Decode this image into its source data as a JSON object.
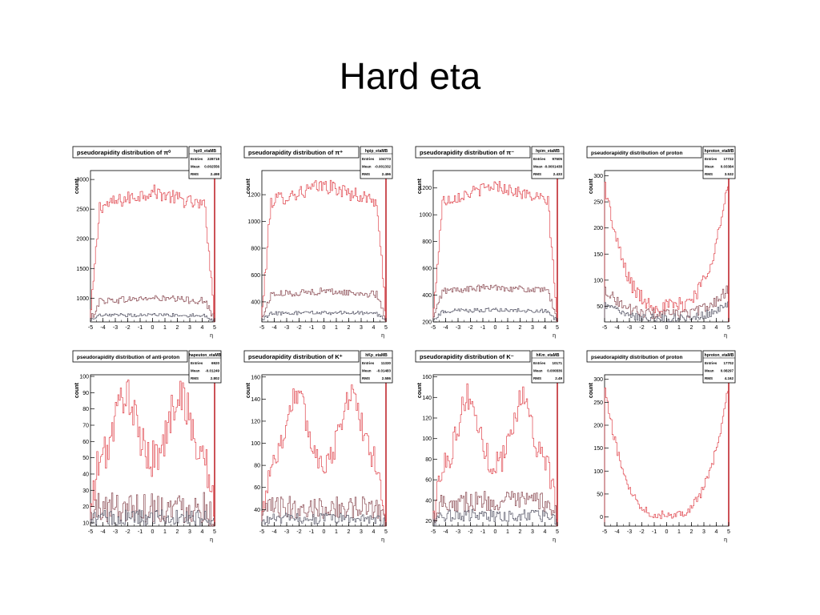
{
  "slide": {
    "title": "Hard eta"
  },
  "colors": {
    "primary": "#e0444c",
    "secondary": "#8a4a52",
    "tertiary": "#555566",
    "frame": "#000000"
  },
  "chart_data": [
    {
      "type": "step-histogram",
      "title": "pseudorapidity distribution of π⁰",
      "xlabel": "η",
      "ylabel": "count",
      "xlim": [
        -5,
        5
      ],
      "ylim": [
        600,
        3150
      ],
      "xticks": [
        -5,
        -4,
        -3,
        -2,
        -1,
        0,
        1,
        2,
        3,
        4,
        5
      ],
      "yticks": [
        1000,
        1500,
        2000,
        2500,
        3000
      ],
      "stats": {
        "name": "hpi0_etaMB",
        "rows": [
          [
            "Entries",
            "228718"
          ],
          [
            "Mean",
            "0.002556"
          ],
          [
            "RMS",
            "2.498"
          ]
        ]
      },
      "series": [
        {
          "role": "primary",
          "shape": "plateau",
          "peak": 2800,
          "base": 650,
          "edge": 0.85,
          "noise": 120
        },
        {
          "role": "secondary",
          "shape": "plateau",
          "peak": 1000,
          "base": 620,
          "edge": 0.85,
          "noise": 60
        },
        {
          "role": "tertiary",
          "shape": "plateau",
          "peak": 720,
          "base": 610,
          "edge": 0.85,
          "noise": 30
        }
      ]
    },
    {
      "type": "step-histogram",
      "title": "pseudorapidity distribution of π⁺",
      "xlabel": "η",
      "ylabel": "count",
      "xlim": [
        -5,
        5
      ],
      "ylim": [
        250,
        1380
      ],
      "xticks": [
        -5,
        -4,
        -3,
        -2,
        -1,
        0,
        1,
        2,
        3,
        4,
        5
      ],
      "yticks": [
        400,
        600,
        800,
        1000,
        1200
      ],
      "stats": {
        "name": "hpip_etaMB",
        "rows": [
          [
            "Entries",
            "104773"
          ],
          [
            "Mean",
            "-0.001332"
          ],
          [
            "RMS",
            "2.496"
          ]
        ]
      },
      "series": [
        {
          "role": "primary",
          "shape": "plateau",
          "peak": 1270,
          "base": 290,
          "edge": 0.85,
          "noise": 55
        },
        {
          "role": "secondary",
          "shape": "plateau",
          "peak": 480,
          "base": 270,
          "edge": 0.85,
          "noise": 25
        },
        {
          "role": "tertiary",
          "shape": "plateau",
          "peak": 320,
          "base": 260,
          "edge": 0.85,
          "noise": 15
        }
      ]
    },
    {
      "type": "step-histogram",
      "title": "pseudorapidity distribution of π⁻",
      "xlabel": "η",
      "ylabel": "count",
      "xlim": [
        -5,
        5
      ],
      "ylim": [
        200,
        1330
      ],
      "xticks": [
        -5,
        -4,
        -3,
        -2,
        -1,
        0,
        1,
        2,
        3,
        4,
        5
      ],
      "yticks": [
        200,
        400,
        600,
        800,
        1000,
        1200
      ],
      "stats": {
        "name": "hpim_etaMB",
        "rows": [
          [
            "Entries",
            "97605"
          ],
          [
            "Mean",
            "-0.0001438"
          ],
          [
            "RMS",
            "2.433"
          ]
        ]
      },
      "series": [
        {
          "role": "primary",
          "shape": "plateau",
          "peak": 1220,
          "base": 230,
          "edge": 0.85,
          "noise": 45
        },
        {
          "role": "secondary",
          "shape": "plateau",
          "peak": 460,
          "base": 215,
          "edge": 0.85,
          "noise": 25
        },
        {
          "role": "tertiary",
          "shape": "plateau",
          "peak": 290,
          "base": 205,
          "edge": 0.85,
          "noise": 15
        }
      ]
    },
    {
      "type": "step-histogram",
      "title": "pseudorapidity distribution of proton",
      "xlabel": "η",
      "ylabel": "count",
      "xlim": [
        -5,
        5
      ],
      "ylim": [
        20,
        310
      ],
      "xticks": [
        -5,
        -4,
        -3,
        -2,
        -1,
        0,
        1,
        2,
        3,
        4,
        5
      ],
      "yticks": [
        50,
        100,
        150,
        200,
        250,
        300
      ],
      "stats": {
        "name": "hproton_etaMB",
        "rows": [
          [
            "Entries",
            "17722"
          ],
          [
            "Mean",
            "0.03384"
          ],
          [
            "RMS",
            "3.532"
          ]
        ]
      },
      "series": [
        {
          "role": "primary",
          "shape": "u",
          "peak": 290,
          "base": 50,
          "edge": 0,
          "noise": 15
        },
        {
          "role": "secondary",
          "shape": "u",
          "peak": 85,
          "base": 35,
          "edge": 0,
          "noise": 10
        },
        {
          "role": "tertiary",
          "shape": "u",
          "peak": 55,
          "base": 28,
          "edge": 0,
          "noise": 8
        }
      ]
    },
    {
      "type": "step-histogram",
      "title": "pseudorapidity distribution of anti-proton",
      "xlabel": "η",
      "ylabel": "count",
      "xlim": [
        -5,
        5
      ],
      "ylim": [
        8,
        101
      ],
      "xticks": [
        -5,
        -4,
        -3,
        -2,
        -1,
        0,
        1,
        2,
        3,
        4,
        5
      ],
      "yticks": [
        10,
        20,
        30,
        40,
        50,
        60,
        70,
        80,
        90,
        100
      ],
      "stats": {
        "name": "hapeuton_etaMB",
        "rows": [
          [
            "Entries",
            "6920"
          ],
          [
            "Mean",
            "-0.01249"
          ],
          [
            "RMS",
            "2.802"
          ]
        ]
      },
      "series": [
        {
          "role": "primary",
          "shape": "bimodal",
          "peak": 90,
          "base": 15,
          "edge": 0.9,
          "noise": 12
        },
        {
          "role": "secondary",
          "shape": "flat",
          "peak": 25,
          "base": 12,
          "edge": 0.9,
          "noise": 10
        },
        {
          "role": "tertiary",
          "shape": "flat",
          "peak": 15,
          "base": 10,
          "edge": 0.9,
          "noise": 5
        }
      ]
    },
    {
      "type": "step-histogram",
      "title": "pseudorapidity distribution of K⁺",
      "xlabel": "η",
      "ylabel": "count",
      "xlim": [
        -5,
        5
      ],
      "ylim": [
        25,
        162
      ],
      "xticks": [
        -5,
        -4,
        -3,
        -2,
        -1,
        0,
        1,
        2,
        3,
        4,
        5
      ],
      "yticks": [
        40,
        60,
        80,
        100,
        120,
        140,
        160
      ],
      "stats": {
        "name": "hKp_etaMB",
        "rows": [
          [
            "Entries",
            "11330"
          ],
          [
            "Mean",
            "-0.01483"
          ],
          [
            "RMS",
            "2.586"
          ]
        ]
      },
      "series": [
        {
          "role": "primary",
          "shape": "bimodal",
          "peak": 145,
          "base": 30,
          "edge": 0.85,
          "noise": 12
        },
        {
          "role": "secondary",
          "shape": "flat",
          "peak": 50,
          "base": 30,
          "edge": 0.85,
          "noise": 10
        },
        {
          "role": "tertiary",
          "shape": "flat",
          "peak": 35,
          "base": 27,
          "edge": 0.85,
          "noise": 5
        }
      ]
    },
    {
      "type": "step-histogram",
      "title": "pseudorapidity distribution of K⁻",
      "xlabel": "η",
      "ylabel": "count",
      "xlim": [
        -5,
        5
      ],
      "ylim": [
        15,
        162
      ],
      "xticks": [
        -5,
        -4,
        -3,
        -2,
        -1,
        0,
        1,
        2,
        3,
        4,
        5
      ],
      "yticks": [
        20,
        40,
        60,
        80,
        100,
        120,
        140,
        160
      ],
      "stats": {
        "name": "hKm_etaMB",
        "rows": [
          [
            "Entries",
            "10171"
          ],
          [
            "Mean",
            "0.000836"
          ],
          [
            "RMS",
            "2.49"
          ]
        ]
      },
      "series": [
        {
          "role": "primary",
          "shape": "bimodal",
          "peak": 140,
          "base": 20,
          "edge": 0.85,
          "noise": 14
        },
        {
          "role": "secondary",
          "shape": "flat",
          "peak": 50,
          "base": 22,
          "edge": 0.85,
          "noise": 10
        },
        {
          "role": "tertiary",
          "shape": "flat",
          "peak": 30,
          "base": 18,
          "edge": 0.85,
          "noise": 6
        }
      ]
    },
    {
      "type": "step-histogram",
      "title": "pseudorapidity distribution of proton",
      "xlabel": "η",
      "ylabel": "count",
      "xlim": [
        -5,
        5
      ],
      "ylim": [
        -20,
        310
      ],
      "xticks": [
        -5,
        -4,
        -3,
        -2,
        -1,
        0,
        1,
        2,
        3,
        4,
        5
      ],
      "yticks": [
        0,
        50,
        100,
        150,
        200,
        250,
        300
      ],
      "stats": {
        "name": "hproton_etaMB",
        "rows": [
          [
            "Entries",
            "17702"
          ],
          [
            "Mean",
            "0.08297"
          ],
          [
            "RMS",
            "4.162"
          ]
        ]
      },
      "series": [
        {
          "role": "primary",
          "shape": "u",
          "peak": 285,
          "base": 5,
          "edge": 0,
          "noise": 10
        }
      ]
    }
  ]
}
